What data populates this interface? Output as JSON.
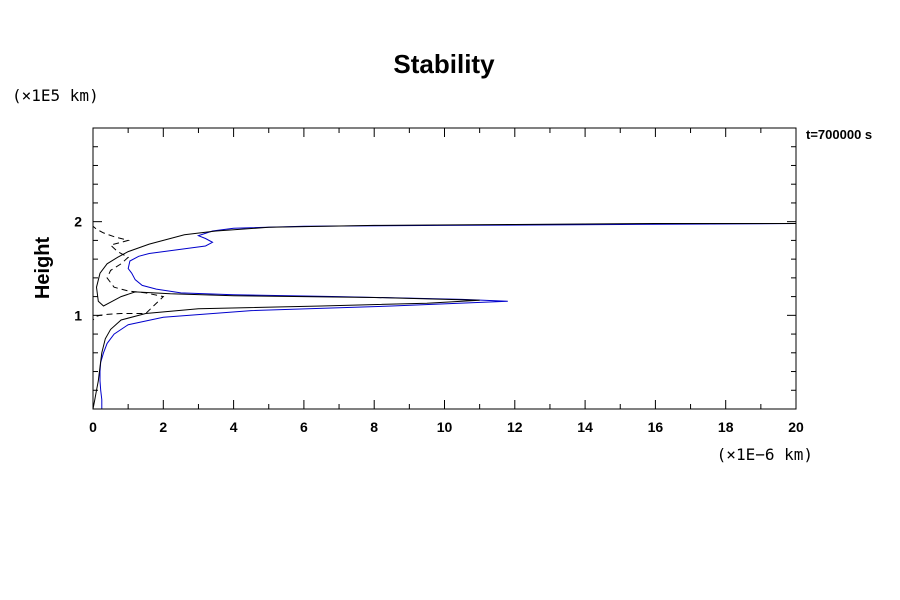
{
  "chart_data": {
    "type": "line",
    "title": "Stability",
    "xlabel": "(×1E−6 km)",
    "ylabel": "Height",
    "y_unit": "(×1E5 km)",
    "annotation": "t=700000 s",
    "xlim": [
      0,
      20
    ],
    "ylim": [
      0,
      3
    ],
    "x_ticks": [
      0,
      2,
      4,
      6,
      8,
      10,
      12,
      14,
      16,
      18,
      20
    ],
    "y_ticks": [
      1,
      2
    ],
    "grid": false,
    "series": [
      {
        "color": "#0000cc",
        "style": "solid",
        "x": [
          0.25,
          0.25,
          0.22,
          0.2,
          0.2,
          0.22,
          0.3,
          0.4,
          0.6,
          1.0,
          2.0,
          4.5,
          8.5,
          11.8,
          10.5,
          7.0,
          4.0,
          2.5,
          1.8,
          1.4,
          1.2,
          1.1,
          1.0,
          1.05,
          1.3,
          1.6,
          2.0,
          2.4,
          2.8,
          3.2,
          3.4,
          3.2,
          3.0,
          3.4,
          4.0,
          6.0,
          10.0,
          15.0,
          20.0
        ],
        "y": [
          0.0,
          0.1,
          0.2,
          0.3,
          0.4,
          0.5,
          0.6,
          0.7,
          0.8,
          0.9,
          0.98,
          1.05,
          1.1,
          1.15,
          1.17,
          1.2,
          1.22,
          1.24,
          1.28,
          1.32,
          1.38,
          1.45,
          1.5,
          1.58,
          1.63,
          1.66,
          1.68,
          1.7,
          1.72,
          1.74,
          1.78,
          1.82,
          1.85,
          1.9,
          1.93,
          1.95,
          1.96,
          1.97,
          1.98
        ]
      },
      {
        "color": "#000000",
        "style": "solid",
        "x": [
          0.0,
          0.05,
          0.1,
          0.15,
          0.2,
          0.25,
          0.35,
          0.5,
          0.8,
          1.5,
          3.0,
          6.5,
          9.5,
          11.0,
          8.0,
          4.0,
          2.2,
          1.2,
          0.8,
          0.5,
          0.3,
          0.15,
          0.1,
          0.2,
          0.4,
          0.7,
          1.0,
          1.3,
          1.6,
          2.0,
          2.6,
          3.5,
          5.0,
          8.0,
          12.0,
          16.0,
          20.0
        ],
        "y": [
          0.0,
          0.1,
          0.2,
          0.3,
          0.45,
          0.6,
          0.75,
          0.85,
          0.95,
          1.02,
          1.07,
          1.1,
          1.13,
          1.16,
          1.19,
          1.21,
          1.23,
          1.25,
          1.2,
          1.14,
          1.1,
          1.15,
          1.3,
          1.45,
          1.55,
          1.62,
          1.68,
          1.72,
          1.76,
          1.8,
          1.86,
          1.9,
          1.94,
          1.96,
          1.97,
          1.98,
          1.98
        ]
      },
      {
        "color": "#000000",
        "style": "dashed",
        "x": [
          0.0,
          0.0,
          0.05,
          0.1,
          0.2,
          0.4,
          0.8,
          1.5,
          2.0,
          1.5,
          1.0,
          0.6,
          0.4,
          0.5,
          0.8,
          1.0,
          0.7,
          0.5,
          0.8,
          1.0,
          0.6,
          0.3,
          0.1,
          0.0
        ],
        "y": [
          0.9,
          0.95,
          0.97,
          0.99,
          1.0,
          1.01,
          1.02,
          1.02,
          1.2,
          1.24,
          1.26,
          1.3,
          1.4,
          1.48,
          1.55,
          1.62,
          1.68,
          1.75,
          1.78,
          1.8,
          1.84,
          1.88,
          1.92,
          1.95
        ]
      }
    ]
  }
}
